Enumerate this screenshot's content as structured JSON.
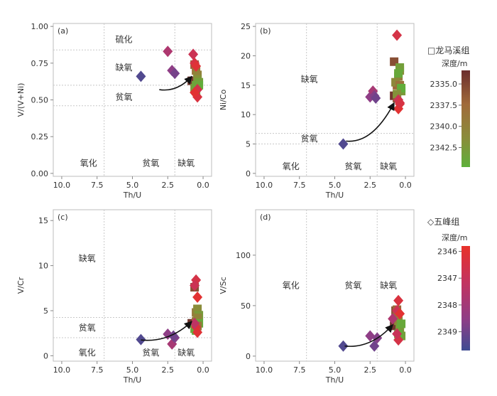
{
  "legends": {
    "longmaxi": {
      "title": "□龙马溪组",
      "colorbar_title": "深度/m",
      "ticks": [
        "2335.0",
        "2337.5",
        "2340.0",
        "2342.5"
      ],
      "tick_values": [
        2335.0,
        2337.5,
        2340.0,
        2342.5
      ],
      "range": [
        2333.4,
        2344.8
      ],
      "colors": [
        "#6b2d2d",
        "#a06a3a",
        "#8a8c3a",
        "#5eb03a"
      ]
    },
    "wufeng": {
      "title": "◇五峰组",
      "colorbar_title": "深度/m",
      "ticks": [
        "2346",
        "2347",
        "2348",
        "2349"
      ],
      "tick_values": [
        2346,
        2347,
        2348,
        2349
      ],
      "range": [
        2345.8,
        2349.7
      ],
      "colors": [
        "#e8322a",
        "#c23360",
        "#8f3e86",
        "#3f4c92"
      ]
    }
  },
  "chart_data": [
    {
      "id": "a",
      "panel_label": "(a)",
      "type": "scatter",
      "xlabel": "Th/U",
      "ylabel": "V/(V+Ni)",
      "xlim": [
        10.6,
        -0.6
      ],
      "ylim": [
        -0.02,
        1.02
      ],
      "xticks": [
        10.0,
        7.5,
        5.0,
        2.5,
        0.0
      ],
      "xtick_labels": [
        "10.0",
        "7.5",
        "5.0",
        "2.5",
        "0.0"
      ],
      "yticks": [
        0.0,
        0.25,
        0.5,
        0.75,
        1.0
      ],
      "ytick_labels": [
        "0.00",
        "0.25",
        "0.50",
        "0.75",
        "1.00"
      ],
      "hlines": [
        0.84,
        0.6,
        0.46
      ],
      "vlines": [
        7.0,
        2.0
      ],
      "regions": [
        {
          "text": "硫化",
          "x": 5.6,
          "y": 0.91
        },
        {
          "text": "缺氧",
          "x": 5.6,
          "y": 0.72
        },
        {
          "text": "贫氧",
          "x": 5.6,
          "y": 0.52
        },
        {
          "text": "氧化",
          "x": 8.1,
          "y": 0.07
        },
        {
          "text": "贫氧",
          "x": 3.7,
          "y": 0.07
        },
        {
          "text": "缺氧",
          "x": 1.2,
          "y": 0.07
        }
      ],
      "arrow": {
        "from": [
          3.1,
          0.57
        ],
        "to": [
          0.8,
          0.66
        ]
      },
      "wufeng": {
        "x": [
          4.4,
          2.5,
          2.2,
          2.0,
          0.7,
          0.6,
          0.5,
          0.4,
          0.4,
          0.6
        ],
        "y": [
          0.66,
          0.83,
          0.7,
          0.68,
          0.81,
          0.75,
          0.73,
          0.57,
          0.52,
          0.55
        ],
        "depth": [
          2349.4,
          2347.6,
          2348.4,
          2348.8,
          2346.8,
          2346.4,
          2346.1,
          2346.6,
          2346.3,
          2346.0
        ]
      },
      "longmaxi": {
        "x": [
          0.8,
          0.6,
          0.5,
          0.4,
          0.4,
          0.3,
          0.6,
          0.5,
          0.3,
          0.5
        ],
        "y": [
          0.63,
          0.74,
          0.7,
          0.67,
          0.64,
          0.62,
          0.58,
          0.56,
          0.6,
          0.6
        ],
        "depth": [
          2334.0,
          2336.5,
          2338.5,
          2340.0,
          2341.5,
          2343.0,
          2342.0,
          2344.0,
          2344.5,
          2343.5
        ]
      }
    },
    {
      "id": "b",
      "panel_label": "(b)",
      "type": "scatter",
      "xlabel": "Th/U",
      "ylabel": "Ni/Co",
      "xlim": [
        10.6,
        -0.6
      ],
      "ylim": [
        -0.5,
        25.5
      ],
      "xticks": [
        10.0,
        7.5,
        5.0,
        2.5,
        0.0
      ],
      "xtick_labels": [
        "10.0",
        "7.5",
        "5.0",
        "2.5",
        "0.0"
      ],
      "yticks": [
        0,
        5,
        10,
        15,
        20,
        25
      ],
      "ytick_labels": [
        "0",
        "5",
        "10",
        "15",
        "20",
        "25"
      ],
      "hlines": [
        6.8,
        5.0
      ],
      "vlines": [
        7.0,
        2.0
      ],
      "regions": [
        {
          "text": "缺氧",
          "x": 6.8,
          "y": 16.0
        },
        {
          "text": "贫氧",
          "x": 6.8,
          "y": 5.9
        },
        {
          "text": "氧化",
          "x": 8.1,
          "y": 1.2
        },
        {
          "text": "贫氧",
          "x": 3.7,
          "y": 1.2
        },
        {
          "text": "缺氧",
          "x": 1.2,
          "y": 1.2
        }
      ],
      "arrow": {
        "from": [
          4.2,
          5.5
        ],
        "to": [
          0.8,
          12.0
        ]
      },
      "wufeng": {
        "x": [
          4.4,
          2.5,
          2.3,
          2.2,
          2.1,
          0.6,
          0.5,
          0.4,
          0.5,
          0.4
        ],
        "y": [
          5.0,
          13.0,
          14.0,
          13.2,
          12.8,
          23.5,
          12.5,
          11.8,
          11.0,
          12.0
        ],
        "depth": [
          2349.4,
          2348.4,
          2347.8,
          2348.6,
          2348.9,
          2346.5,
          2346.8,
          2346.2,
          2346.0,
          2346.4
        ]
      },
      "longmaxi": {
        "x": [
          0.8,
          0.8,
          0.6,
          0.5,
          0.4,
          0.4,
          0.3,
          0.6,
          0.7,
          0.5,
          0.4,
          0.3,
          0.6
        ],
        "y": [
          19.0,
          13.2,
          15.0,
          16.5,
          17.5,
          18.0,
          14.0,
          12.8,
          15.5,
          17.0,
          15.0,
          14.5,
          13.5
        ],
        "depth": [
          2335.5,
          2334.0,
          2337.0,
          2339.0,
          2341.0,
          2343.0,
          2342.5,
          2336.0,
          2340.5,
          2344.0,
          2338.0,
          2344.5,
          2341.5
        ]
      }
    },
    {
      "id": "c",
      "panel_label": "(c)",
      "type": "scatter",
      "xlabel": "Th/U",
      "ylabel": "V/Cr",
      "xlim": [
        10.6,
        -0.6
      ],
      "ylim": [
        -0.6,
        16.2
      ],
      "xticks": [
        10.0,
        7.5,
        5.0,
        2.5,
        0.0
      ],
      "xtick_labels": [
        "10.0",
        "7.5",
        "5.0",
        "2.5",
        "0.0"
      ],
      "yticks": [
        0,
        5,
        10,
        15
      ],
      "ytick_labels": [
        "0",
        "5",
        "10",
        "15"
      ],
      "hlines": [
        4.25,
        2.0
      ],
      "vlines": [
        7.0,
        2.0
      ],
      "regions": [
        {
          "text": "缺氧",
          "x": 8.2,
          "y": 10.8
        },
        {
          "text": "贫氧",
          "x": 8.2,
          "y": 3.1
        },
        {
          "text": "氧化",
          "x": 8.2,
          "y": 0.35
        },
        {
          "text": "贫氧",
          "x": 3.7,
          "y": 0.35
        },
        {
          "text": "缺氧",
          "x": 1.2,
          "y": 0.35
        }
      ],
      "arrow": {
        "from": [
          4.4,
          1.75
        ],
        "to": [
          0.8,
          3.8
        ]
      },
      "wufeng": {
        "x": [
          4.4,
          2.5,
          2.2,
          2.0,
          2.1,
          0.5,
          0.6,
          0.4,
          0.5,
          0.4,
          0.6
        ],
        "y": [
          1.8,
          2.4,
          1.3,
          2.0,
          2.2,
          8.4,
          7.8,
          6.5,
          3.2,
          2.6,
          3.6
        ],
        "depth": [
          2349.4,
          2348.4,
          2347.8,
          2348.6,
          2348.9,
          2346.5,
          2346.8,
          2346.0,
          2346.3,
          2346.1,
          2347.2
        ]
      },
      "longmaxi": {
        "x": [
          0.8,
          0.6,
          0.5,
          0.4,
          0.3,
          0.5,
          0.6,
          0.4,
          0.3,
          0.5,
          0.4
        ],
        "y": [
          3.6,
          7.6,
          4.8,
          5.2,
          4.5,
          3.8,
          3.0,
          4.2,
          3.6,
          2.8,
          3.3
        ],
        "depth": [
          2334.0,
          2335.5,
          2339.0,
          2341.0,
          2342.5,
          2337.5,
          2343.5,
          2340.0,
          2344.0,
          2344.5,
          2338.0
        ]
      }
    },
    {
      "id": "d",
      "panel_label": "(d)",
      "type": "scatter",
      "xlabel": "Th/U",
      "ylabel": "V/Sc",
      "xlim": [
        10.6,
        -0.6
      ],
      "ylim": [
        -5,
        145
      ],
      "xticks": [
        10.0,
        7.5,
        5.0,
        2.5,
        0.0
      ],
      "xtick_labels": [
        "10.0",
        "7.5",
        "5.0",
        "2.5",
        "0.0"
      ],
      "yticks": [
        0,
        50,
        100
      ],
      "ytick_labels": [
        "0",
        "50",
        "100"
      ],
      "hlines": [],
      "vlines": [
        7.0,
        2.0
      ],
      "regions": [
        {
          "text": "氧化",
          "x": 8.1,
          "y": 70
        },
        {
          "text": "贫氧",
          "x": 3.7,
          "y": 70
        },
        {
          "text": "缺氧",
          "x": 1.2,
          "y": 70
        }
      ],
      "arrow": {
        "from": [
          4.3,
          10.0
        ],
        "to": [
          0.9,
          31.0
        ]
      },
      "wufeng": {
        "x": [
          4.4,
          2.5,
          2.2,
          2.0,
          0.9,
          0.6,
          0.5,
          0.4,
          0.5,
          0.6
        ],
        "y": [
          10,
          20,
          10,
          18,
          37,
          45,
          55,
          42,
          16,
          22
        ],
        "depth": [
          2349.4,
          2348.4,
          2348.9,
          2348.6,
          2347.6,
          2346.8,
          2346.3,
          2346.0,
          2346.5,
          2346.9
        ]
      },
      "longmaxi": {
        "x": [
          0.8,
          0.7,
          0.6,
          0.5,
          0.4,
          0.3,
          0.6,
          0.4,
          0.3,
          0.5
        ],
        "y": [
          30,
          45,
          40,
          35,
          25,
          20,
          46,
          28,
          32,
          22
        ],
        "depth": [
          2334.0,
          2335.5,
          2338.0,
          2340.0,
          2341.5,
          2343.0,
          2337.0,
          2342.0,
          2344.0,
          2344.5
        ]
      }
    }
  ]
}
